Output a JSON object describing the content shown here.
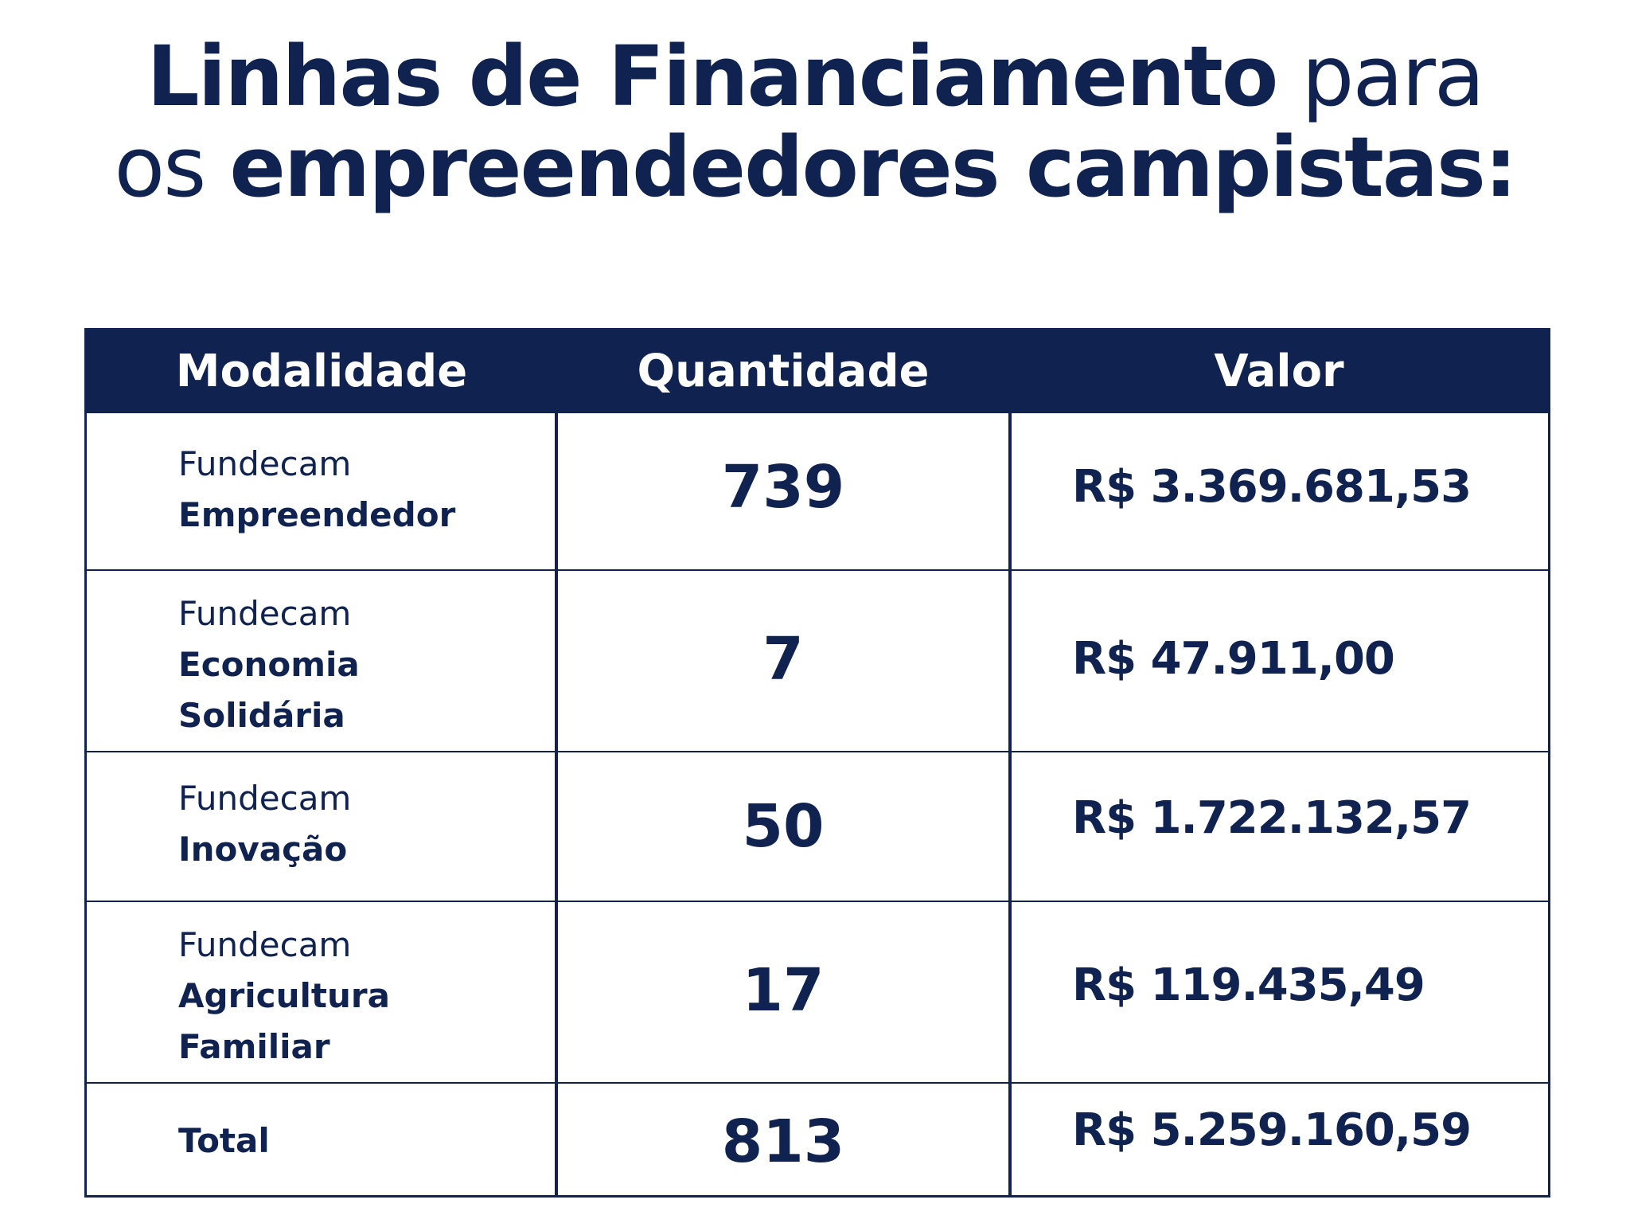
{
  "title": {
    "line1_bold": "Linhas de Financiamento",
    "line1_light": "para",
    "line2_light": "os",
    "line2_bold": "empreendedores campistas:"
  },
  "table": {
    "headers": [
      "Modalidade",
      "Quantidade",
      "Valor"
    ],
    "rows": [
      {
        "prefix": "Fundecam",
        "name_lines": [
          "Empreendedor"
        ],
        "quantidade": "739",
        "valor": "R$ 3.369.681,53"
      },
      {
        "prefix": "Fundecam",
        "name_lines": [
          "Economia",
          "Solidária"
        ],
        "quantidade": "7",
        "valor": "R$ 47.911,00"
      },
      {
        "prefix": "Fundecam",
        "name_lines": [
          "Inovação"
        ],
        "quantidade": "50",
        "valor": "R$ 1.722.132,57"
      },
      {
        "prefix": "Fundecam",
        "name_lines": [
          "Agricultura",
          "Familiar"
        ],
        "quantidade": "17",
        "valor": "R$ 119.435,49"
      }
    ],
    "total": {
      "label": "Total",
      "quantidade": "813",
      "valor": "R$ 5.259.160,59"
    }
  },
  "colors": {
    "navy": "#0f2250",
    "background": "#ffffff"
  }
}
